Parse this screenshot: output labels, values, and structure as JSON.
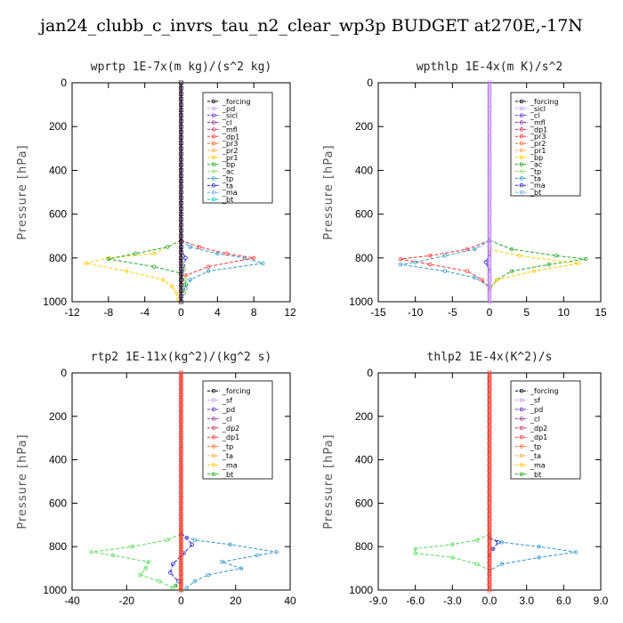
{
  "title": "jan24_clubb_c_invrs_tau_n2_clear_wp3p  BUDGET at270E,-17N",
  "chart_data": [
    {
      "type": "line",
      "title": "wprtp  1E-7x(m kg)/(s^2 kg)",
      "ylabel": "Pressure [hPa]",
      "ylim": [
        1000,
        0
      ],
      "yticks": [
        "0",
        "200",
        "400",
        "600",
        "800",
        "1000"
      ],
      "xlim": [
        -12,
        12
      ],
      "xticks": [
        -12,
        -8,
        -4,
        0,
        4,
        8,
        12
      ],
      "xtick_labels": [
        "-12",
        "-8",
        "-4",
        "0",
        "4",
        "8",
        "12"
      ],
      "legend": [
        "_forcing",
        "_pd",
        "_sicl",
        "_cl",
        "_mfl",
        "_dp1",
        "_pr3",
        "_pr2",
        "_pr1",
        "_bp",
        "_ac",
        "_tp",
        "_ta",
        "_ma",
        "_bt"
      ],
      "series": [
        {
          "name": "_pr1",
          "color": "#ffcc00",
          "points": [
            [
              0,
              720
            ],
            [
              -3,
              780
            ],
            [
              -8,
              800
            ],
            [
              -10.5,
              825
            ],
            [
              -6,
              860
            ],
            [
              -2,
              900
            ],
            [
              -1,
              930
            ],
            [
              -0.5,
              960
            ],
            [
              -0.3,
              990
            ]
          ]
        },
        {
          "name": "_bp",
          "color": "#22aa22",
          "points": [
            [
              0,
              720
            ],
            [
              -1.5,
              750
            ],
            [
              -5,
              780
            ],
            [
              -8,
              805
            ],
            [
              -3,
              840
            ],
            [
              0,
              870
            ],
            [
              0.5,
              920
            ],
            [
              0.3,
              960
            ]
          ]
        },
        {
          "name": "_tp",
          "color": "#3399cc",
          "points": [
            [
              0,
              720
            ],
            [
              1,
              750
            ],
            [
              4,
              780
            ],
            [
              7,
              800
            ],
            [
              9,
              825
            ],
            [
              3,
              860
            ],
            [
              1,
              900
            ],
            [
              0.5,
              940
            ]
          ]
        },
        {
          "name": "_pr3",
          "color": "#ff3333",
          "points": [
            [
              0,
              720
            ],
            [
              2,
              750
            ],
            [
              5,
              780
            ],
            [
              8,
              800
            ],
            [
              3,
              840
            ],
            [
              0.5,
              880
            ],
            [
              0,
              920
            ]
          ]
        },
        {
          "name": "_ta",
          "color": "#2222cc",
          "points": [
            [
              0,
              760
            ],
            [
              0.5,
              800
            ],
            [
              0.3,
              850
            ],
            [
              0,
              900
            ]
          ]
        },
        {
          "name": "_ac",
          "color": "#99dd66",
          "points": [
            [
              0,
              800
            ],
            [
              0.3,
              850
            ],
            [
              0.5,
              900
            ],
            [
              0.2,
              950
            ]
          ]
        }
      ]
    },
    {
      "type": "line",
      "title": "wpthlp  1E-4x(m K)/s^2",
      "ylabel": "Pressure [hPa]",
      "ylim": [
        1000,
        0
      ],
      "yticks": [
        "0",
        "200",
        "400",
        "600",
        "800",
        "1000"
      ],
      "xlim": [
        -15,
        15
      ],
      "xticks": [
        -15,
        -10,
        -5,
        0,
        5,
        10,
        15
      ],
      "xtick_labels": [
        "-15",
        "-10",
        "-5",
        "0",
        "5",
        "10",
        "15"
      ],
      "legend": [
        "_forcing",
        "_sicl",
        "_cl",
        "_mfl",
        "_dp1",
        "_pr3",
        "_pr2",
        "_pr1",
        "_bp",
        "_ac",
        "_tp",
        "_ta",
        "_ma",
        "_bt"
      ],
      "series": [
        {
          "name": "_pr3",
          "color": "#ff3333",
          "points": [
            [
              0,
              720
            ],
            [
              -3,
              760
            ],
            [
              -8,
              790
            ],
            [
              -12,
              805
            ],
            [
              -8,
              830
            ],
            [
              -3,
              860
            ],
            [
              -1,
              900
            ],
            [
              0,
              940
            ]
          ]
        },
        {
          "name": "_tp",
          "color": "#3399cc",
          "points": [
            [
              0,
              720
            ],
            [
              -2,
              760
            ],
            [
              -6,
              790
            ],
            [
              -10,
              820
            ],
            [
              -12,
              830
            ],
            [
              -6,
              860
            ],
            [
              -2,
              890
            ],
            [
              0,
              930
            ]
          ]
        },
        {
          "name": "_bp",
          "color": "#22aa22",
          "points": [
            [
              0,
              720
            ],
            [
              3,
              760
            ],
            [
              9,
              790
            ],
            [
              13,
              805
            ],
            [
              8,
              830
            ],
            [
              3,
              860
            ],
            [
              1,
              900
            ],
            [
              0,
              940
            ]
          ]
        },
        {
          "name": "_pr1",
          "color": "#ffcc00",
          "points": [
            [
              0,
              760
            ],
            [
              4,
              790
            ],
            [
              12,
              825
            ],
            [
              6,
              860
            ],
            [
              1,
              900
            ],
            [
              0,
              950
            ]
          ]
        },
        {
          "name": "_ta",
          "color": "#2222cc",
          "points": [
            [
              0,
              780
            ],
            [
              -0.5,
              820
            ],
            [
              0,
              860
            ]
          ]
        }
      ]
    },
    {
      "type": "line",
      "title": "rtp2  1E-11x(kg^2)/(kg^2 s)",
      "ylabel": "Pressure [hPa]",
      "ylim": [
        1000,
        0
      ],
      "yticks": [
        "0",
        "200",
        "400",
        "600",
        "800",
        "1000"
      ],
      "xlim": [
        -40,
        40
      ],
      "xticks": [
        -40,
        -20,
        0,
        20,
        40
      ],
      "xtick_labels": [
        "-40",
        "-20",
        "0",
        "20",
        "40"
      ],
      "legend": [
        "_forcing",
        "_sf",
        "_pd",
        "_cl",
        "_dp2",
        "_dp1",
        "_tp",
        "_ta",
        "_ma",
        "_bt"
      ],
      "series": [
        {
          "name": "_dp1",
          "color": "#55dd55",
          "points": [
            [
              0,
              740
            ],
            [
              -5,
              770
            ],
            [
              -18,
              800
            ],
            [
              -33,
              825
            ],
            [
              -25,
              840
            ],
            [
              -12,
              870
            ],
            [
              -13,
              900
            ],
            [
              -15,
              930
            ],
            [
              -8,
              960
            ],
            [
              -3,
              990
            ]
          ]
        },
        {
          "name": "_tp",
          "color": "#3399cc",
          "points": [
            [
              0,
              740
            ],
            [
              5,
              770
            ],
            [
              18,
              790
            ],
            [
              35,
              825
            ],
            [
              28,
              840
            ],
            [
              15,
              870
            ],
            [
              22,
              900
            ],
            [
              10,
              930
            ],
            [
              5,
              960
            ],
            [
              2,
              990
            ]
          ]
        },
        {
          "name": "_ta",
          "color": "#2222cc",
          "points": [
            [
              0,
              740
            ],
            [
              2,
              760
            ],
            [
              4,
              790
            ],
            [
              1,
              830
            ],
            [
              -3,
              880
            ],
            [
              -4,
              920
            ],
            [
              -1,
              960
            ]
          ]
        },
        {
          "name": "_dp2",
          "color": "#22aa22",
          "points": [
            [
              0,
              960
            ],
            [
              -2,
              980
            ],
            [
              0,
              1000
            ]
          ]
        }
      ]
    },
    {
      "type": "line",
      "title": "thlp2  1E-4x(K^2)/s",
      "ylabel": "Pressure [hPa]",
      "ylim": [
        1000,
        0
      ],
      "yticks": [
        "0",
        "200",
        "400",
        "600",
        "800",
        "1000"
      ],
      "xlim": [
        -9,
        9
      ],
      "xticks": [
        -9,
        -6,
        -3,
        0,
        3,
        6,
        9
      ],
      "xtick_labels": [
        "-9.0",
        "-6.0",
        "-3.0",
        "0.0",
        "3.0",
        "6.0",
        "9.0"
      ],
      "legend": [
        "_forcing",
        "_sf",
        "_pd",
        "_cl",
        "_dp2",
        "_dp1",
        "_tp",
        "_ta",
        "_ma",
        "_bt"
      ],
      "series": [
        {
          "name": "_dp1",
          "color": "#55dd55",
          "points": [
            [
              0,
              740
            ],
            [
              -1,
              770
            ],
            [
              -3,
              790
            ],
            [
              -6,
              810
            ],
            [
              -6,
              830
            ],
            [
              -3,
              850
            ],
            [
              -1,
              880
            ],
            [
              0,
              910
            ]
          ]
        },
        {
          "name": "_tp",
          "color": "#3399cc",
          "points": [
            [
              0,
              760
            ],
            [
              1,
              780
            ],
            [
              4,
              800
            ],
            [
              7,
              825
            ],
            [
              4,
              850
            ],
            [
              1,
              880
            ],
            [
              0,
              910
            ]
          ]
        },
        {
          "name": "_ta",
          "color": "#2222cc",
          "points": [
            [
              0,
              760
            ],
            [
              0.7,
              780
            ],
            [
              0.3,
              810
            ],
            [
              0,
              840
            ]
          ]
        }
      ]
    }
  ],
  "palette": [
    "#000000",
    "#cc99ff",
    "#6633cc",
    "#993399",
    "#cc3366",
    "#ff3333",
    "#ff6633",
    "#ffaa44",
    "#ffcc00",
    "#22aa22",
    "#99dd66",
    "#3399cc",
    "#2222cc",
    "#66aaff",
    "#00cccc"
  ]
}
